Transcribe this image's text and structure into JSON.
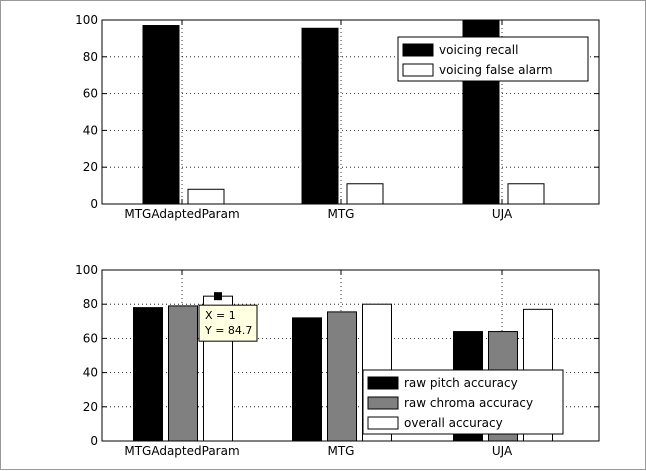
{
  "chart_data": [
    {
      "type": "bar",
      "categories": [
        "MTGAdaptedParam",
        "MTG",
        "UJA"
      ],
      "series": [
        {
          "name": "voicing recall",
          "values": [
            97,
            95.5,
            100
          ],
          "color": "#000000"
        },
        {
          "name": "voicing false alarm",
          "values": [
            8,
            11,
            11
          ],
          "color": "#ffffff"
        }
      ],
      "ylim": [
        0,
        100
      ],
      "yticks": [
        "0",
        "20",
        "40",
        "60",
        "80",
        "100"
      ],
      "grid": true,
      "legend": "top-right"
    },
    {
      "type": "bar",
      "categories": [
        "MTGAdaptedParam",
        "MTG",
        "UJA"
      ],
      "series": [
        {
          "name": "raw pitch accuracy",
          "values": [
            78,
            72,
            64
          ],
          "color": "#000000"
        },
        {
          "name": "raw chroma accuracy",
          "values": [
            79,
            75.5,
            64
          ],
          "color": "#808080"
        },
        {
          "name": "overall accuracy",
          "values": [
            84.7,
            80,
            77
          ],
          "color": "#ffffff"
        }
      ],
      "ylim": [
        0,
        100
      ],
      "yticks": [
        "0",
        "20",
        "40",
        "60",
        "80",
        "100"
      ],
      "grid": true,
      "legend": "bottom-right",
      "datatip": {
        "x_text": "X = 1",
        "y_text": "Y = 84.7",
        "series": 2,
        "category": 0
      }
    }
  ]
}
